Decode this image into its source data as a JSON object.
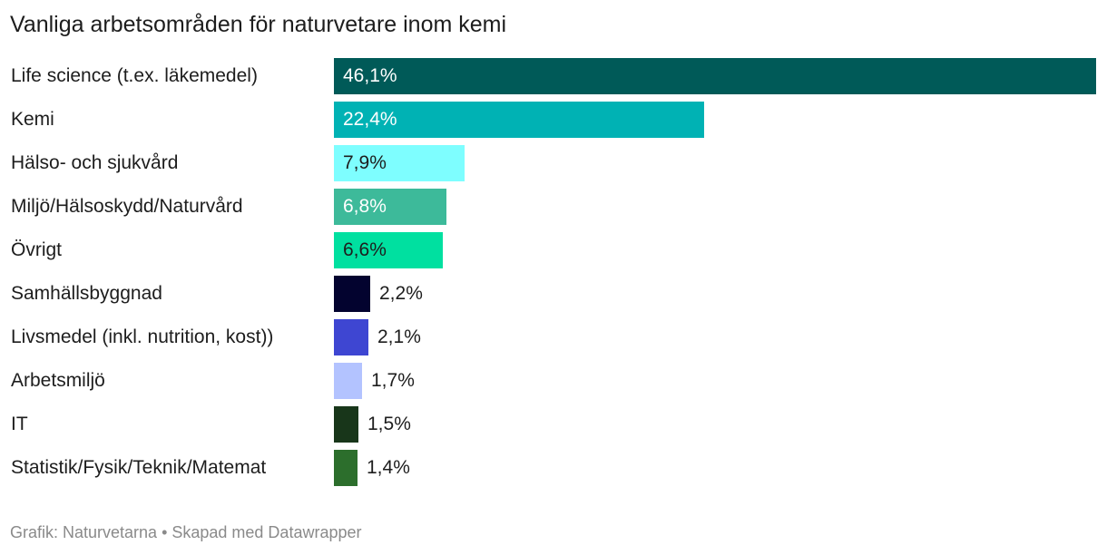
{
  "chart_data": {
    "type": "bar",
    "orientation": "horizontal",
    "title": "Vanliga arbetsområden för naturvetare inom kemi",
    "categories": [
      "Life science (t.ex. läkemedel)",
      "Kemi",
      "Hälso- och sjukvård",
      "Miljö/Hälsoskydd/Naturvård",
      "Övrigt",
      "Samhällsbyggnad",
      "Livsmedel (inkl. nutrition, kost))",
      "Arbetsmiljö",
      "IT",
      "Statistik/Fysik/Teknik/Matemat"
    ],
    "values": [
      46.1,
      22.4,
      7.9,
      6.8,
      6.6,
      2.2,
      2.1,
      1.7,
      1.5,
      1.4
    ],
    "value_labels": [
      "46,1%",
      "22,4%",
      "7,9%",
      "6,8%",
      "6,6%",
      "2,2%",
      "2,1%",
      "1,7%",
      "1,5%",
      "1,4%"
    ],
    "colors": [
      "#005a58",
      "#00b2b4",
      "#7efeff",
      "#3dba9a",
      "#00e0a0",
      "#03032f",
      "#3e46d2",
      "#b3c3ff",
      "#18361a",
      "#2c6e2c"
    ],
    "label_colors": [
      "#ffffff",
      "#ffffff",
      "#1d1d1d",
      "#ffffff",
      "#1d1d1d",
      "#1d1d1d",
      "#1d1d1d",
      "#1d1d1d",
      "#1d1d1d",
      "#1d1d1d"
    ],
    "xlim": [
      0,
      46.1
    ],
    "grid": false,
    "legend": "none",
    "xlabel": "",
    "ylabel": ""
  },
  "footer": "Grafik: Naturvetarna • Skapad med Datawrapper"
}
